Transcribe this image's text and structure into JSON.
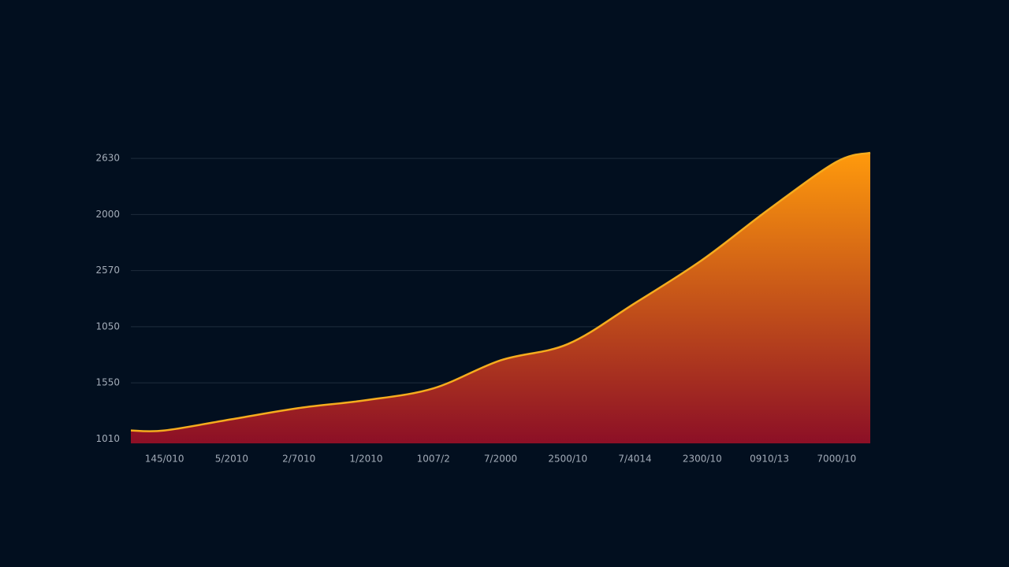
{
  "chart_data": {
    "type": "area",
    "categories": [
      "145/010",
      "5/2010",
      "2/7010",
      "1/2010",
      "1007/2",
      "7/2000",
      "2500/10",
      "7/4014",
      "2300/10",
      "0910/13",
      "7000/10"
    ],
    "values": [
      0.15,
      0.35,
      0.55,
      0.69,
      0.9,
      1.4,
      1.69,
      2.42,
      3.19,
      4.1,
      4.94
    ],
    "ylim": [
      -0.08,
      5.1
    ],
    "yticks": [
      {
        "value": 0,
        "label": "1010"
      },
      {
        "value": 1,
        "label": "1550"
      },
      {
        "value": 2,
        "label": "1050"
      },
      {
        "value": 3,
        "label": "2570"
      },
      {
        "value": 4,
        "label": "2000"
      },
      {
        "value": 5,
        "label": "2630"
      }
    ],
    "grid": true,
    "color": "#f5ac1e",
    "gradient": [
      "#ff9a0c",
      "#8c0f26"
    ]
  }
}
